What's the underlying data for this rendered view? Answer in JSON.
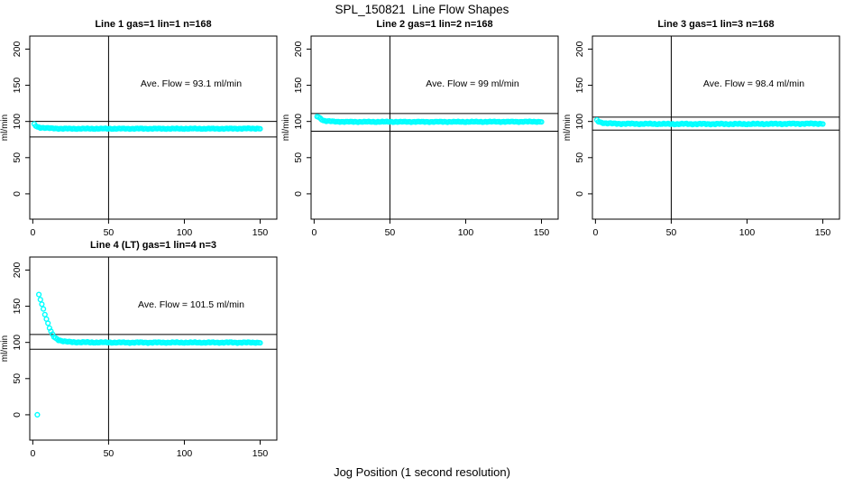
{
  "title": "SPL_150821  Line Flow Shapes",
  "xlabel": "Jog Position (1 second resolution)",
  "colors": {
    "marker": "#00ffff",
    "axis": "#000000",
    "text": "#000000",
    "background": "#ffffff"
  },
  "axes": {
    "y_label": "ml/min",
    "x_ticks": [
      0,
      50,
      100,
      150
    ],
    "y_ticks": [
      0,
      50,
      100,
      150,
      200
    ],
    "xlim": [
      -2,
      161
    ],
    "ylim": [
      -35,
      218
    ]
  },
  "chart_data": [
    {
      "type": "scatter",
      "title": "Line 1 gas=1 lin=1 n=168",
      "annotation": "Ave. Flow =  93.1  ml/min",
      "ave_flow_ml_min": 93.1,
      "n": 168,
      "ref_lines": {
        "vertical_x": 50,
        "upper": 100,
        "lower": 78.5
      },
      "marker": "open-circle",
      "x_step": 1,
      "noise": 0.4,
      "keypoints": [
        [
          1,
          96
        ],
        [
          2,
          94
        ],
        [
          3,
          92.5
        ],
        [
          5,
          91.5
        ],
        [
          8,
          91
        ],
        [
          12,
          90.5
        ],
        [
          20,
          90
        ],
        [
          40,
          90
        ],
        [
          70,
          90
        ],
        [
          100,
          90
        ],
        [
          130,
          90
        ],
        [
          150,
          90.3
        ]
      ],
      "extra_points": []
    },
    {
      "type": "scatter",
      "title": "Line 2 gas=1 lin=2 n=168",
      "annotation": "Ave. Flow =  99  ml/min",
      "ave_flow_ml_min": 99,
      "n": 168,
      "ref_lines": {
        "vertical_x": 50,
        "upper": 111,
        "lower": 86.5
      },
      "marker": "open-circle",
      "x_step": 1,
      "noise": 0.4,
      "keypoints": [
        [
          2,
          107
        ],
        [
          3,
          106
        ],
        [
          4,
          104.5
        ],
        [
          5,
          103
        ],
        [
          6,
          101.5
        ],
        [
          8,
          100.5
        ],
        [
          12,
          100
        ],
        [
          20,
          99.5
        ],
        [
          50,
          99.5
        ],
        [
          100,
          99.5
        ],
        [
          150,
          99.7
        ]
      ],
      "extra_points": []
    },
    {
      "type": "scatter",
      "title": "Line 3 gas=1 lin=3 n=168",
      "annotation": "Ave. Flow =  98.4  ml/min",
      "ave_flow_ml_min": 98.4,
      "n": 168,
      "ref_lines": {
        "vertical_x": 50,
        "upper": 106,
        "lower": 88
      },
      "marker": "open-circle",
      "x_step": 1,
      "noise": 0.55,
      "keypoints": [
        [
          1,
          101.5
        ],
        [
          2,
          100
        ],
        [
          4,
          98.5
        ],
        [
          7,
          97.5
        ],
        [
          12,
          97
        ],
        [
          20,
          96.8
        ],
        [
          50,
          96.5
        ],
        [
          100,
          96.5
        ],
        [
          150,
          97
        ]
      ],
      "extra_points": []
    },
    {
      "type": "scatter",
      "title": "Line 4 (LT) gas=1 lin=4 n=3",
      "annotation": "Ave. Flow =  101.5  ml/min",
      "ave_flow_ml_min": 101.5,
      "n": 3,
      "ref_lines": {
        "vertical_x": 50,
        "upper": 111,
        "lower": 90.5
      },
      "marker": "open-circle",
      "x_step": 1,
      "noise": 0.5,
      "keypoints": [
        [
          4,
          166
        ],
        [
          5,
          160
        ],
        [
          6,
          153
        ],
        [
          7,
          146
        ],
        [
          8,
          139
        ],
        [
          9,
          132
        ],
        [
          10,
          126
        ],
        [
          11,
          120
        ],
        [
          12,
          115
        ],
        [
          13,
          111
        ],
        [
          14,
          108
        ],
        [
          15,
          106
        ],
        [
          17,
          103.5
        ],
        [
          19,
          102
        ],
        [
          22,
          101
        ],
        [
          26,
          100.5
        ],
        [
          30,
          100.2
        ],
        [
          40,
          100
        ],
        [
          60,
          99.8
        ],
        [
          90,
          99.8
        ],
        [
          120,
          99.8
        ],
        [
          150,
          99.8
        ]
      ],
      "extra_points": [
        [
          3,
          0
        ]
      ]
    }
  ]
}
